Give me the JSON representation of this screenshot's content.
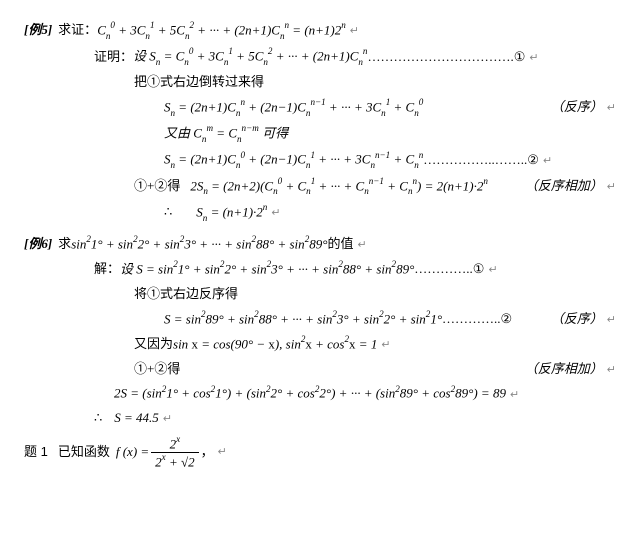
{
  "ex5": {
    "label": "[例5]",
    "prompt_prefix": "求证：",
    "prompt_formula": "C<span class='sub'>n</span><span class='sup'>0</span> + 3C<span class='sub'>n</span><span class='sup'>1</span> + 5C<span class='sub'>n</span><span class='sup'>2</span> + ··· + (2n+1)C<span class='sub'>n</span><span class='sup'>n</span> = (n+1)2<span class='sup'>n</span>",
    "proof_label": "证明：",
    "line1_text": "设 S<span class='sub'>n</span> = C<span class='sub'>n</span><span class='sup'>0</span> + 3C<span class='sub'>n</span><span class='sup'>1</span> + 5C<span class='sub'>n</span><span class='sup'>2</span> + ··· + (2n+1)C<span class='sub'>n</span><span class='sup'>n</span>",
    "line1_dots": " ……………………………. ",
    "tag1": "①",
    "line2": "把①式右边倒转过来得",
    "line3": "S<span class='sub'>n</span> = (2n+1)C<span class='sub'>n</span><span class='sup'>n</span> + (2n−1)C<span class='sub'>n</span><span class='sup'>n−1</span> + ··· + 3C<span class='sub'>n</span><span class='sup'>1</span> + C<span class='sub'>n</span><span class='sup'>0</span>",
    "note_reverse": "（反序）",
    "line4": "又由 C<span class='sub'>n</span><span class='sup'>m</span> = C<span class='sub'>n</span><span class='sup'>n−m</span> 可得",
    "line5": "S<span class='sub'>n</span> = (2n+1)C<span class='sub'>n</span><span class='sup'>0</span> + (2n−1)C<span class='sub'>n</span><span class='sup'>1</span> + ··· + 3C<span class='sub'>n</span><span class='sup'>n−1</span> + C<span class='sub'>n</span><span class='sup'>n</span>",
    "line5_dots": " ……………..…….. ",
    "tag2": "②",
    "line6_prefix": "①+②得",
    "line6": "2S<span class='sub'>n</span> = (2n+2)(C<span class='sub'>n</span><span class='sup'>0</span> + C<span class='sub'>n</span><span class='sup'>1</span> + ··· + C<span class='sub'>n</span><span class='sup'>n−1</span> + C<span class='sub'>n</span><span class='sup'>n</span>) = 2(n+1)·2<span class='sup'>n</span>",
    "note_add": "（反序相加）",
    "line7_prefix": "∴",
    "line7": "S<span class='sub'>n</span> = (n+1)·2<span class='sup'>n</span>"
  },
  "ex6": {
    "label": "[例6]",
    "prompt_prefix": "求",
    "prompt_formula": "sin<span class='sup'>2</span>1° + sin<span class='sup'>2</span>2° + sin<span class='sup'>2</span>3° + ··· + sin<span class='sup'>2</span>88° + sin<span class='sup'>2</span>89°",
    "prompt_suffix": " 的值",
    "sol_label": "解：",
    "line1_text": "设 S = sin<span class='sup'>2</span>1° + sin<span class='sup'>2</span>2° + sin<span class='sup'>2</span>3° + ··· + sin<span class='sup'>2</span>88° + sin<span class='sup'>2</span>89°",
    "line1_dots": " ………….. ",
    "tag1": "①",
    "line2": "将①式右边反序得",
    "line3": "S = sin<span class='sup'>2</span>89° + sin<span class='sup'>2</span>88° + ··· + sin<span class='sup'>2</span>3° + sin<span class='sup'>2</span>2° + sin<span class='sup'>2</span>1°",
    "line3_dots": "…………..",
    "tag2": "②",
    "note_reverse": "（反序）",
    "line4_prefix": "又因为 ",
    "line4": "sin <span class='rm'>x</span> = cos(90° − <span class='rm'>x</span>), sin<span class='sup'>2</span><span class='rm'>x</span> + cos<span class='sup'>2</span><span class='rm'>x</span> = 1",
    "line5": "①+②得",
    "note_add": "（反序相加）",
    "line6": "2S = (sin<span class='sup'>2</span>1° + cos<span class='sup'>2</span>1°) + (sin<span class='sup'>2</span>2° + cos<span class='sup'>2</span>2°) + ··· + (sin<span class='sup'>2</span>89° + cos<span class='sup'>2</span>89°) = 89",
    "line7_prefix": "∴",
    "line7": "S = 44.5"
  },
  "q1": {
    "label": "题 1",
    "text": "已知函数",
    "frac_num": "2<span class='sup'>x</span>",
    "frac_den": "2<span class='sup'>x</span> + √2",
    "lhs": "f (x) ="
  },
  "marks": {
    "ret": "↵"
  }
}
